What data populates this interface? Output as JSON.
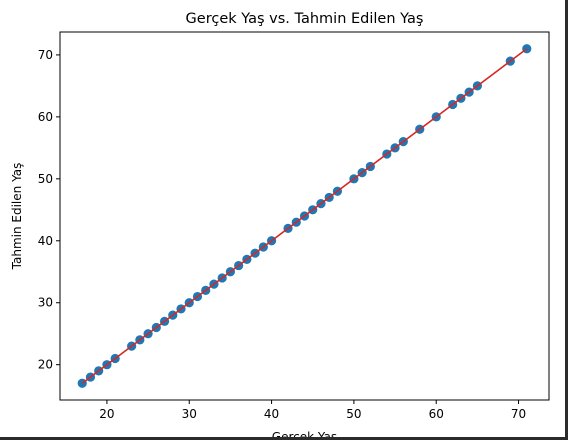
{
  "chart_data": {
    "type": "scatter",
    "title": "Gerçek Yaş vs. Tahmin Edilen Yaş",
    "xlabel": "Gerçek Yaş",
    "ylabel": "Tahmin Edilen Yaş",
    "xlim": [
      14.3,
      73.7
    ],
    "ylim": [
      14.3,
      73.7
    ],
    "x_ticks": [
      20,
      30,
      40,
      50,
      60,
      70
    ],
    "y_ticks": [
      20,
      30,
      40,
      50,
      60,
      70
    ],
    "grid": false,
    "series": [
      {
        "kind": "scatter",
        "color": "#1f77b4",
        "x": [
          17,
          18,
          19,
          20,
          21,
          23,
          24,
          25,
          26,
          27,
          28,
          29,
          30,
          31,
          32,
          33,
          34,
          35,
          36,
          37,
          38,
          39,
          40,
          42,
          43,
          44,
          45,
          46,
          47,
          48,
          50,
          51,
          52,
          54,
          55,
          56,
          58,
          60,
          62,
          63,
          64,
          65,
          69,
          71
        ],
        "y": [
          17,
          18,
          19,
          20,
          21,
          23,
          24,
          25,
          26,
          27,
          28,
          29,
          30,
          31,
          32,
          33,
          34,
          35,
          36,
          37,
          38,
          39,
          40,
          42,
          43,
          44,
          45,
          46,
          47,
          48,
          50,
          51,
          52,
          54,
          55,
          56,
          58,
          60,
          62,
          63,
          64,
          65,
          69,
          71
        ]
      },
      {
        "kind": "line",
        "color": "#d62728",
        "x": [
          17,
          71
        ],
        "y": [
          17,
          71
        ]
      }
    ]
  }
}
